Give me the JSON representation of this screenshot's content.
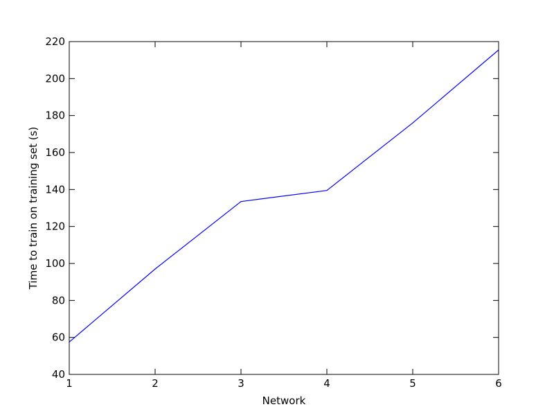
{
  "chart_data": {
    "type": "line",
    "title": "",
    "xlabel": "Network",
    "ylabel": "Time to train on training set (s)",
    "x": [
      1,
      2,
      3,
      4,
      5,
      6
    ],
    "series": [
      {
        "values": [
          57.5,
          97.0,
          133.5,
          139.5,
          176.0,
          215.5
        ],
        "color": "#0000ff"
      }
    ],
    "xlim": [
      1,
      6
    ],
    "ylim": [
      40,
      220
    ],
    "xticks": [
      1,
      2,
      3,
      4,
      5,
      6
    ],
    "yticks": [
      40,
      60,
      80,
      100,
      120,
      140,
      160,
      180,
      200,
      220
    ],
    "grid": false
  }
}
